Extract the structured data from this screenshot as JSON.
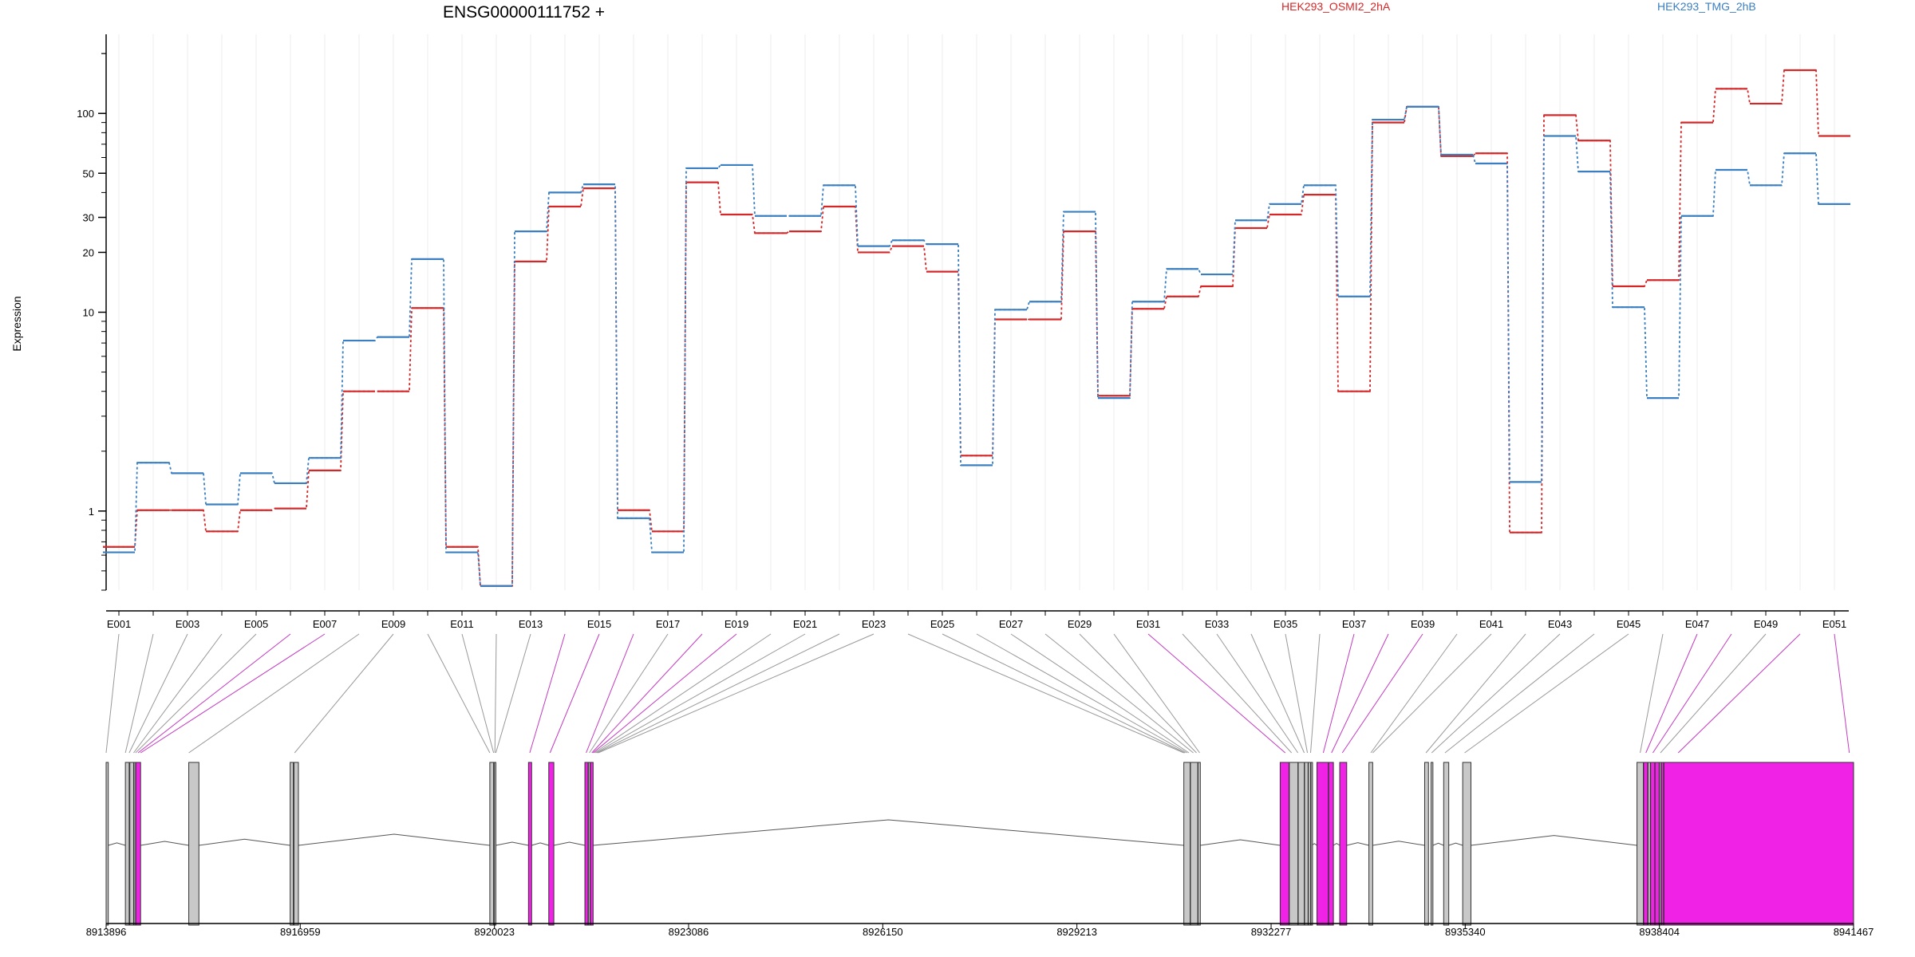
{
  "chart_data": {
    "type": "line",
    "title": "ENSG00000111752 +",
    "ylabel": "Expression",
    "y_scale": "log",
    "y_ticks": [
      1,
      10,
      20,
      30,
      50,
      100
    ],
    "ylim": [
      0.4,
      250
    ],
    "grid": "vertical-light",
    "legend_placement": "top",
    "categories": [
      "E001",
      "E002",
      "E003",
      "E004",
      "E005",
      "E006",
      "E007",
      "E008",
      "E009",
      "E010",
      "E011",
      "E012",
      "E013",
      "E014",
      "E015",
      "E016",
      "E017",
      "E018",
      "E019",
      "E020",
      "E021",
      "E022",
      "E023",
      "E024",
      "E025",
      "E026",
      "E027",
      "E028",
      "E029",
      "E030",
      "E031",
      "E032",
      "E033",
      "E034",
      "E035",
      "E036",
      "E037",
      "E038",
      "E039",
      "E040",
      "E041",
      "E042",
      "E043",
      "E044",
      "E045",
      "E046",
      "E047",
      "E048",
      "E049",
      "E050",
      "E051"
    ],
    "x_tick_labels": [
      "E001",
      "E003",
      "E005",
      "E007",
      "E009",
      "E011",
      "E013",
      "E015",
      "E017",
      "E019",
      "E021",
      "E023",
      "E025",
      "E027",
      "E029",
      "E031",
      "E033",
      "E035",
      "E037",
      "E039",
      "E041",
      "E043",
      "E045",
      "E047",
      "E049",
      "E051"
    ],
    "series": [
      {
        "name": "HEK293_OSMI2_2hA",
        "color": "#d62728",
        "values": [
          0.66,
          1.01,
          1.01,
          0.79,
          1.01,
          1.03,
          1.6,
          4.0,
          4.0,
          10.5,
          0.66,
          0.42,
          18,
          34,
          42,
          1.01,
          0.79,
          45,
          31,
          25,
          25.5,
          34,
          20,
          21.5,
          16,
          1.9,
          9.2,
          9.2,
          25.5,
          3.8,
          10.4,
          12,
          13.5,
          26.5,
          31,
          39,
          4.0,
          90,
          108,
          61,
          63,
          0.78,
          98,
          73,
          13.5,
          14.5,
          90,
          133,
          112,
          165,
          77
        ]
      },
      {
        "name": "HEK293_TMG_2hB",
        "color": "#3a7fc1",
        "values": [
          0.62,
          1.75,
          1.55,
          1.08,
          1.55,
          1.38,
          1.85,
          7.2,
          7.5,
          18.5,
          0.62,
          0.42,
          25.5,
          40,
          44,
          0.92,
          0.62,
          53,
          55,
          30.5,
          30.5,
          43.5,
          21.5,
          23,
          22,
          1.7,
          10.3,
          11.3,
          32,
          3.7,
          11.3,
          16.5,
          15.5,
          29,
          35,
          43.5,
          12,
          93,
          108,
          62,
          56,
          1.4,
          77,
          51,
          10.6,
          3.7,
          30.5,
          52,
          43.5,
          63,
          35
        ]
      }
    ]
  },
  "gene_model": {
    "coordinates": [
      "8913896",
      "8916959",
      "8920023",
      "8923086",
      "8926150",
      "8929213",
      "8932277",
      "8935340",
      "8938404",
      "8941467"
    ],
    "highlight_color": "#f022e6",
    "exon_color": "#c8c8c8"
  }
}
